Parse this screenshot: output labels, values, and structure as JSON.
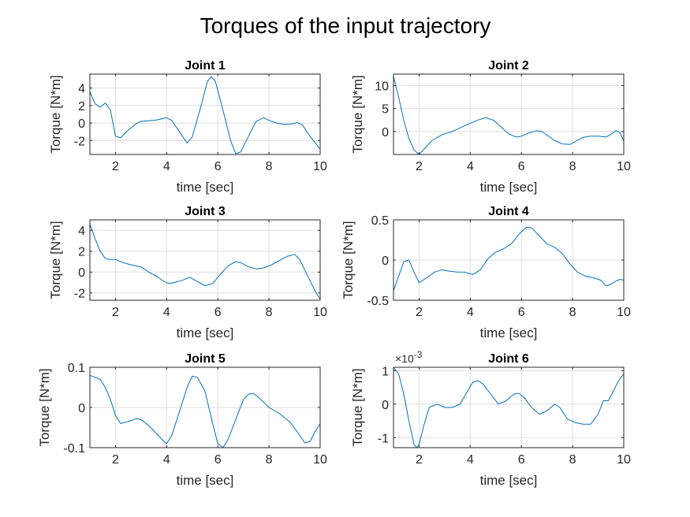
{
  "figure": {
    "title": "Torques of the input trajectory",
    "line_color": "#0072BD",
    "grid_color": "#dedede",
    "axis_color": "#262626"
  },
  "chart_data": [
    {
      "type": "line",
      "title": "Joint 1",
      "xlabel": "time [sec]",
      "ylabel": "Torque [N*m]",
      "xlim": [
        1,
        10
      ],
      "ylim": [
        -3.6,
        5.6
      ],
      "xticks": [
        2,
        4,
        6,
        8,
        10
      ],
      "yticks": [
        -2,
        0,
        2,
        4
      ],
      "ytick_labels": [
        "-2",
        "0",
        "2",
        "4"
      ],
      "grid": true,
      "series": [
        {
          "x": [
            1.0,
            1.2,
            1.4,
            1.6,
            1.8,
            2.0,
            2.2,
            2.5,
            2.8,
            3.0,
            3.3,
            3.6,
            4.0,
            4.2,
            4.5,
            4.8,
            5.0,
            5.3,
            5.6,
            5.75,
            5.9,
            6.2,
            6.5,
            6.7,
            6.9,
            7.2,
            7.5,
            7.8,
            8.0,
            8.3,
            8.6,
            8.9,
            9.1,
            9.3,
            9.6,
            10.0
          ],
          "y": [
            3.6,
            2.2,
            1.8,
            2.3,
            1.5,
            -1.5,
            -1.7,
            -0.8,
            -0.1,
            0.2,
            0.25,
            0.35,
            0.6,
            0.3,
            -1.0,
            -2.3,
            -1.6,
            1.5,
            4.8,
            5.3,
            4.8,
            1.5,
            -2.0,
            -3.5,
            -3.3,
            -1.5,
            0.2,
            0.6,
            0.3,
            0.0,
            -0.15,
            -0.1,
            0.05,
            -0.2,
            -1.5,
            -3.0
          ]
        }
      ]
    },
    {
      "type": "line",
      "title": "Joint 2",
      "xlabel": "time [sec]",
      "ylabel": "Torque [N*m]",
      "xlim": [
        1,
        10
      ],
      "ylim": [
        -5,
        12.5
      ],
      "xticks": [
        2,
        4,
        6,
        8,
        10
      ],
      "yticks": [
        0,
        5,
        10
      ],
      "ytick_labels": [
        "0",
        "5",
        "10"
      ],
      "grid": true,
      "series": [
        {
          "x": [
            1.0,
            1.2,
            1.4,
            1.6,
            1.8,
            2.0,
            2.2,
            2.5,
            2.8,
            3.0,
            3.3,
            3.6,
            4.0,
            4.3,
            4.6,
            4.9,
            5.2,
            5.5,
            5.8,
            6.0,
            6.3,
            6.6,
            6.8,
            7.0,
            7.3,
            7.6,
            7.9,
            8.1,
            8.4,
            8.7,
            9.0,
            9.3,
            9.5,
            9.7,
            9.85,
            10.0
          ],
          "y": [
            12,
            7.5,
            2.5,
            -1.5,
            -4.0,
            -5.0,
            -3.8,
            -2.0,
            -1.0,
            -0.5,
            0.0,
            0.8,
            1.8,
            2.5,
            3.0,
            2.5,
            1.0,
            -0.5,
            -1.2,
            -1.0,
            -0.3,
            0.2,
            0.0,
            -0.8,
            -2.0,
            -2.7,
            -2.8,
            -2.2,
            -1.3,
            -1.0,
            -1.0,
            -1.2,
            -0.6,
            0.2,
            -0.3,
            -2.0
          ]
        }
      ]
    },
    {
      "type": "line",
      "title": "Joint 3",
      "xlabel": "time [sec]",
      "ylabel": "Torque [N*m]",
      "xlim": [
        1,
        10
      ],
      "ylim": [
        -2.7,
        5.0
      ],
      "xticks": [
        2,
        4,
        6,
        8,
        10
      ],
      "yticks": [
        -2,
        0,
        2,
        4
      ],
      "ytick_labels": [
        "-2",
        "0",
        "2",
        "4"
      ],
      "grid": true,
      "series": [
        {
          "x": [
            1.0,
            1.2,
            1.4,
            1.6,
            1.8,
            2.0,
            2.3,
            2.6,
            3.0,
            3.3,
            3.6,
            3.9,
            4.1,
            4.3,
            4.6,
            4.9,
            5.2,
            5.5,
            5.8,
            6.1,
            6.4,
            6.7,
            6.9,
            7.2,
            7.5,
            7.8,
            8.1,
            8.4,
            8.7,
            9.0,
            9.2,
            9.4,
            9.6,
            9.8,
            10.0
          ],
          "y": [
            4.6,
            3.2,
            2.0,
            1.3,
            1.2,
            1.2,
            0.9,
            0.7,
            0.5,
            0.0,
            -0.4,
            -0.9,
            -1.1,
            -1.0,
            -0.8,
            -0.5,
            -0.9,
            -1.3,
            -1.1,
            -0.2,
            0.6,
            1.0,
            0.9,
            0.5,
            0.3,
            0.4,
            0.7,
            1.1,
            1.5,
            1.7,
            1.2,
            0.2,
            -0.8,
            -1.8,
            -2.6
          ]
        }
      ]
    },
    {
      "type": "line",
      "title": "Joint 4",
      "xlabel": "time [sec]",
      "ylabel": "Torque [N*m]",
      "xlim": [
        1,
        10
      ],
      "ylim": [
        -0.5,
        0.5
      ],
      "xticks": [
        2,
        4,
        6,
        8,
        10
      ],
      "yticks": [
        -0.5,
        0,
        0.5
      ],
      "ytick_labels": [
        "-0.5",
        "0",
        "0.5"
      ],
      "grid": true,
      "series": [
        {
          "x": [
            1.0,
            1.2,
            1.4,
            1.6,
            1.8,
            2.0,
            2.3,
            2.6,
            2.9,
            3.2,
            3.5,
            3.8,
            4.1,
            4.4,
            4.7,
            5.0,
            5.3,
            5.6,
            5.9,
            6.2,
            6.4,
            6.7,
            7.0,
            7.3,
            7.6,
            7.9,
            8.2,
            8.5,
            8.8,
            9.1,
            9.3,
            9.5,
            9.7,
            9.85,
            10.0
          ],
          "y": [
            -0.38,
            -0.2,
            -0.02,
            0.0,
            -0.15,
            -0.28,
            -0.22,
            -0.15,
            -0.12,
            -0.14,
            -0.15,
            -0.15,
            -0.18,
            -0.12,
            0.02,
            0.1,
            0.14,
            0.2,
            0.32,
            0.41,
            0.4,
            0.3,
            0.2,
            0.16,
            0.08,
            -0.05,
            -0.15,
            -0.2,
            -0.22,
            -0.25,
            -0.32,
            -0.3,
            -0.26,
            -0.24,
            -0.25
          ]
        }
      ]
    },
    {
      "type": "line",
      "title": "Joint 5",
      "xlabel": "time [sec]",
      "ylabel": "Torque [N*m]",
      "xlim": [
        1,
        10
      ],
      "ylim": [
        -0.1,
        0.1
      ],
      "xticks": [
        2,
        4,
        6,
        8,
        10
      ],
      "yticks": [
        -0.1,
        0,
        0.1
      ],
      "ytick_labels": [
        "-0.1",
        "0",
        "0.1"
      ],
      "grid": true,
      "series": [
        {
          "x": [
            1.0,
            1.2,
            1.4,
            1.6,
            1.8,
            2.0,
            2.2,
            2.5,
            2.8,
            3.0,
            3.3,
            3.6,
            3.9,
            4.0,
            4.2,
            4.5,
            4.8,
            5.0,
            5.2,
            5.5,
            5.8,
            6.0,
            6.2,
            6.4,
            6.7,
            7.0,
            7.2,
            7.4,
            7.6,
            8.0,
            8.4,
            8.8,
            9.1,
            9.4,
            9.6,
            9.8,
            10.0
          ],
          "y": [
            0.08,
            0.075,
            0.07,
            0.05,
            0.02,
            -0.02,
            -0.04,
            -0.035,
            -0.028,
            -0.03,
            -0.045,
            -0.065,
            -0.085,
            -0.09,
            -0.07,
            -0.01,
            0.05,
            0.078,
            0.075,
            0.04,
            -0.04,
            -0.09,
            -0.1,
            -0.08,
            -0.03,
            0.02,
            0.033,
            0.035,
            0.025,
            0.0,
            -0.015,
            -0.035,
            -0.06,
            -0.088,
            -0.085,
            -0.06,
            -0.04
          ]
        }
      ]
    },
    {
      "type": "line",
      "title": "Joint 6",
      "xlabel": "time [sec]",
      "ylabel": "Torque [N*m]",
      "xlim": [
        1,
        10
      ],
      "ylim": [
        -0.0013,
        0.0011
      ],
      "xticks": [
        2,
        4,
        6,
        8,
        10
      ],
      "yticks": [
        -0.001,
        0,
        0.001
      ],
      "ytick_labels": [
        "-1",
        "0",
        "1"
      ],
      "y_exponent": "×10-3",
      "grid": true,
      "series": [
        {
          "x": [
            1.0,
            1.2,
            1.4,
            1.6,
            1.8,
            1.9,
            2.0,
            2.2,
            2.4,
            2.7,
            3.0,
            3.3,
            3.6,
            3.9,
            4.1,
            4.3,
            4.5,
            4.8,
            5.1,
            5.4,
            5.7,
            5.9,
            6.1,
            6.4,
            6.7,
            7.0,
            7.3,
            7.5,
            7.8,
            8.1,
            8.4,
            8.7,
            9.0,
            9.2,
            9.4,
            9.6,
            9.8,
            10.0
          ],
          "y": [
            0.0011,
            0.0009,
            0.0003,
            -0.0005,
            -0.0012,
            -0.0013,
            -0.0012,
            -0.0006,
            -0.0001,
            0.0,
            -0.0001,
            -0.0001,
            0.0,
            0.0004,
            0.00065,
            0.0007,
            0.0006,
            0.0003,
            0.0,
            0.0001,
            0.0003,
            0.00032,
            0.0002,
            -0.0001,
            -0.0003,
            -0.0002,
            0.0,
            -0.0001,
            -0.00045,
            -0.00055,
            -0.0006,
            -0.0006,
            -0.0003,
            0.0001,
            0.0001,
            0.0004,
            0.0007,
            0.0009
          ]
        }
      ]
    }
  ]
}
